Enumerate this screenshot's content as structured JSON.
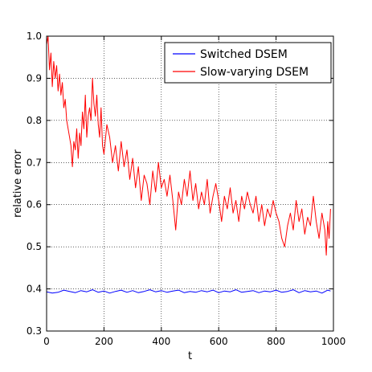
{
  "chart_data": {
    "type": "line",
    "title": "",
    "xlabel": "t",
    "ylabel": "relative error",
    "xlim": [
      0,
      1000
    ],
    "ylim": [
      0.3,
      1.0
    ],
    "xticks": [
      "0",
      "200",
      "400",
      "600",
      "800",
      "1000"
    ],
    "yticks": [
      "0.3",
      "0.4",
      "0.5",
      "0.6",
      "0.7",
      "0.8",
      "0.9",
      "1.0"
    ],
    "grid": true,
    "legend_position": "top-right",
    "series": [
      {
        "name": "Switched DSEM",
        "color": "#0000ff",
        "x": [
          0,
          20,
          40,
          60,
          80,
          100,
          120,
          140,
          160,
          180,
          200,
          220,
          240,
          260,
          280,
          300,
          320,
          340,
          360,
          380,
          400,
          420,
          440,
          460,
          480,
          500,
          520,
          540,
          560,
          580,
          600,
          620,
          640,
          660,
          680,
          700,
          720,
          740,
          760,
          780,
          800,
          820,
          840,
          860,
          880,
          900,
          920,
          940,
          960,
          980,
          990
        ],
        "y": [
          0.393,
          0.39,
          0.392,
          0.397,
          0.394,
          0.391,
          0.396,
          0.393,
          0.398,
          0.392,
          0.395,
          0.39,
          0.394,
          0.397,
          0.392,
          0.396,
          0.391,
          0.394,
          0.398,
          0.393,
          0.396,
          0.392,
          0.395,
          0.397,
          0.391,
          0.394,
          0.392,
          0.396,
          0.393,
          0.397,
          0.391,
          0.395,
          0.393,
          0.398,
          0.392,
          0.394,
          0.396,
          0.391,
          0.395,
          0.393,
          0.397,
          0.392,
          0.394,
          0.398,
          0.391,
          0.396,
          0.393,
          0.395,
          0.39,
          0.397,
          0.395
        ]
      },
      {
        "name": "Slow-varying DSEM",
        "color": "#ff0000",
        "x": [
          0,
          5,
          10,
          15,
          20,
          25,
          30,
          35,
          40,
          45,
          50,
          55,
          60,
          65,
          70,
          75,
          80,
          85,
          90,
          95,
          100,
          105,
          110,
          115,
          120,
          125,
          130,
          135,
          140,
          145,
          150,
          155,
          160,
          165,
          170,
          175,
          180,
          185,
          190,
          195,
          200,
          210,
          220,
          230,
          240,
          250,
          260,
          270,
          280,
          290,
          300,
          310,
          320,
          330,
          340,
          350,
          360,
          370,
          380,
          390,
          400,
          410,
          420,
          430,
          440,
          450,
          460,
          470,
          480,
          490,
          500,
          510,
          520,
          530,
          540,
          550,
          560,
          570,
          580,
          590,
          600,
          610,
          620,
          630,
          640,
          650,
          660,
          670,
          680,
          690,
          700,
          710,
          720,
          730,
          740,
          750,
          760,
          770,
          780,
          790,
          800,
          810,
          820,
          830,
          840,
          850,
          860,
          870,
          880,
          890,
          900,
          910,
          920,
          930,
          940,
          950,
          960,
          970,
          975,
          980,
          985,
          990
        ],
        "y": [
          0.98,
          1.0,
          0.92,
          0.96,
          0.88,
          0.94,
          0.9,
          0.93,
          0.87,
          0.91,
          0.86,
          0.89,
          0.83,
          0.85,
          0.8,
          0.78,
          0.76,
          0.74,
          0.69,
          0.75,
          0.73,
          0.78,
          0.71,
          0.77,
          0.74,
          0.82,
          0.78,
          0.86,
          0.76,
          0.81,
          0.83,
          0.8,
          0.9,
          0.84,
          0.81,
          0.86,
          0.79,
          0.76,
          0.83,
          0.74,
          0.72,
          0.79,
          0.76,
          0.7,
          0.74,
          0.68,
          0.75,
          0.69,
          0.73,
          0.66,
          0.71,
          0.64,
          0.69,
          0.61,
          0.67,
          0.65,
          0.6,
          0.68,
          0.63,
          0.7,
          0.64,
          0.66,
          0.62,
          0.67,
          0.61,
          0.54,
          0.63,
          0.6,
          0.66,
          0.62,
          0.68,
          0.61,
          0.65,
          0.59,
          0.63,
          0.6,
          0.66,
          0.58,
          0.62,
          0.65,
          0.61,
          0.56,
          0.62,
          0.59,
          0.64,
          0.58,
          0.61,
          0.56,
          0.62,
          0.59,
          0.63,
          0.6,
          0.58,
          0.62,
          0.56,
          0.6,
          0.55,
          0.59,
          0.57,
          0.61,
          0.58,
          0.56,
          0.52,
          0.5,
          0.55,
          0.58,
          0.54,
          0.61,
          0.56,
          0.59,
          0.53,
          0.57,
          0.55,
          0.62,
          0.56,
          0.52,
          0.58,
          0.54,
          0.48,
          0.56,
          0.52,
          0.59
        ]
      }
    ]
  }
}
